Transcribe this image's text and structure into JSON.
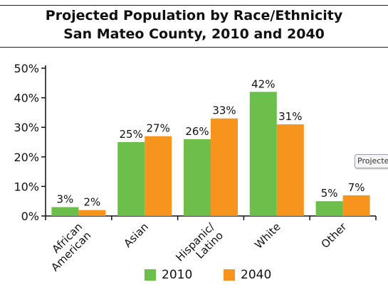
{
  "chart_data": {
    "type": "bar",
    "title": [
      "Projected Population by Race/Ethnicity",
      "San Mateo County, 2010 and 2040"
    ],
    "categories": [
      [
        "African",
        "American"
      ],
      [
        "Asian"
      ],
      [
        "Hispanic/",
        "Latino"
      ],
      [
        "White"
      ],
      [
        "Other"
      ]
    ],
    "series": [
      {
        "name": "2010",
        "color": "#6cbf4a",
        "values": [
          3,
          25,
          26,
          42,
          5
        ],
        "labels": [
          "3%",
          "25%",
          "26%",
          "42%",
          "5%"
        ]
      },
      {
        "name": "2040",
        "color": "#f7941d",
        "values": [
          2,
          27,
          33,
          31,
          7
        ],
        "labels": [
          "2%",
          "27%",
          "33%",
          "31%",
          "7%"
        ]
      }
    ],
    "ylim": [
      0,
      50
    ],
    "yticks": [
      0,
      10,
      20,
      30,
      40,
      50
    ],
    "ytick_labels": [
      "0%",
      "10%",
      "20%",
      "30%",
      "40%",
      "50%"
    ],
    "xlabel": "",
    "ylabel": "",
    "grid": false,
    "legend_position": "bottom"
  },
  "tooltip": {
    "text": "Projecte"
  }
}
